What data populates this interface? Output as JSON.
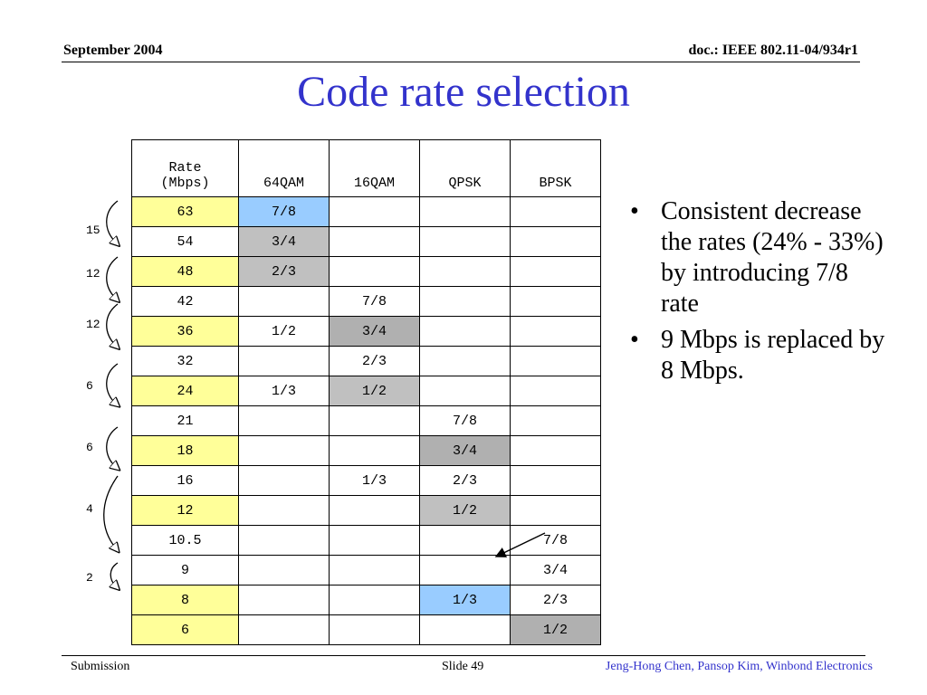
{
  "header": {
    "date": "September 2004",
    "doc": "doc.: IEEE 802.11-04/934r1"
  },
  "title": "Code rate selection",
  "table": {
    "headers": [
      "Rate\n(Mbps)",
      "64QAM",
      "16QAM",
      "QPSK",
      "BPSK"
    ],
    "rows": [
      [
        "63",
        "7/8",
        "",
        "",
        ""
      ],
      [
        "54",
        "3/4",
        "",
        "",
        ""
      ],
      [
        "48",
        "2/3",
        "",
        "",
        ""
      ],
      [
        "42",
        "",
        "7/8",
        "",
        ""
      ],
      [
        "36",
        "1/2",
        "3/4",
        "",
        ""
      ],
      [
        "32",
        "",
        "2/3",
        "",
        ""
      ],
      [
        "24",
        "1/3",
        "1/2",
        "",
        ""
      ],
      [
        "21",
        "",
        "",
        "7/8",
        ""
      ],
      [
        "18",
        "",
        "",
        "3/4",
        ""
      ],
      [
        "16",
        "",
        "1/3",
        "2/3",
        ""
      ],
      [
        "12",
        "",
        "",
        "1/2",
        ""
      ],
      [
        "10.5",
        "",
        "",
        "",
        "7/8"
      ],
      [
        "9",
        "",
        "",
        "",
        "3/4"
      ],
      [
        "8",
        "",
        "",
        "1/3",
        "2/3"
      ],
      [
        "6",
        "",
        "",
        "",
        "1/2"
      ]
    ],
    "cell_colors": {
      "yellow": "#ffff99",
      "blue": "#99ccff",
      "gray_light": "#c0c0c0",
      "gray_dark": "#b0b0b0"
    }
  },
  "jumps": [
    "15",
    "12",
    "12",
    "6",
    "6",
    "4",
    "2"
  ],
  "bullets": [
    "Consistent decrease the rates (24% - 33%) by introducing 7/8 rate",
    "9 Mbps is replaced by 8 Mbps."
  ],
  "footer": {
    "left": "Submission",
    "slide": "Slide 49",
    "authors": "Jeng-Hong Chen, Pansop Kim, Winbond Electronics"
  },
  "colors": {
    "title": "#3333cc",
    "footer_authors": "#3333cc"
  }
}
